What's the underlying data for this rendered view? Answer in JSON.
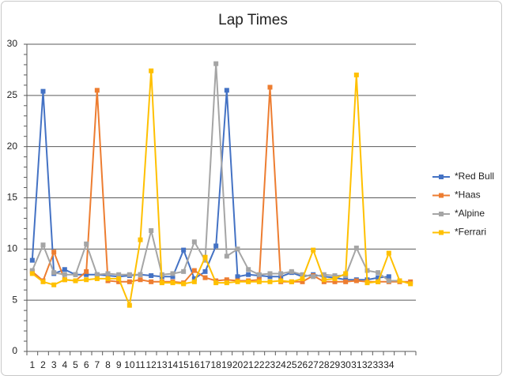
{
  "chart_data": {
    "type": "line",
    "title": "Lap Times",
    "categories": [
      "1",
      "2",
      "3",
      "4",
      "5",
      "6",
      "7",
      "8",
      "9",
      "10",
      "11",
      "12",
      "13",
      "14",
      "15",
      "16",
      "17",
      "18",
      "19",
      "20",
      "21",
      "22",
      "23",
      "24",
      "25",
      "26",
      "27",
      "28",
      "29",
      "30",
      "31",
      "32",
      "33",
      "34",
      null,
      null
    ],
    "series": [
      {
        "name": "*Red Bull",
        "color": "#4472c4",
        "values": [
          8.9,
          25.4,
          7.6,
          8.0,
          7.5,
          7.5,
          7.5,
          7.4,
          7.3,
          7.4,
          7.5,
          7.4,
          7.3,
          7.3,
          9.9,
          7.1,
          7.8,
          10.3,
          25.5,
          7.3,
          7.5,
          7.4,
          7.3,
          7.3,
          7.7,
          7.3,
          7.5,
          7.3,
          7.2,
          7.0,
          7.0,
          7.0,
          7.2,
          7.3,
          null,
          null
        ]
      },
      {
        "name": "*Haas",
        "color": "#ed7d31",
        "values": [
          7.8,
          6.9,
          9.7,
          7.0,
          6.9,
          7.8,
          25.5,
          6.9,
          6.8,
          6.8,
          7.0,
          6.8,
          6.8,
          6.8,
          6.7,
          7.9,
          7.2,
          6.9,
          7.0,
          6.9,
          6.9,
          7.0,
          25.8,
          6.8,
          6.8,
          6.8,
          7.4,
          6.8,
          6.8,
          6.8,
          6.9,
          6.8,
          6.8,
          6.8,
          6.8,
          6.8
        ]
      },
      {
        "name": "*Alpine",
        "color": "#a5a5a5",
        "values": [
          7.9,
          10.4,
          7.7,
          7.5,
          7.5,
          10.5,
          7.5,
          7.6,
          7.5,
          7.5,
          7.5,
          11.8,
          7.5,
          7.6,
          7.8,
          10.7,
          8.9,
          28.1,
          9.3,
          10.0,
          8.0,
          7.5,
          7.6,
          7.6,
          7.8,
          7.5,
          7.3,
          7.5,
          7.4,
          7.4,
          10.1,
          7.9,
          7.7,
          6.9,
          6.9,
          null
        ]
      },
      {
        "name": "*Ferrari",
        "color": "#ffc000",
        "values": [
          7.6,
          6.8,
          6.5,
          7.0,
          6.9,
          7.0,
          7.1,
          7.1,
          7.1,
          4.5,
          10.9,
          27.4,
          6.7,
          6.7,
          6.6,
          6.8,
          9.2,
          6.7,
          6.7,
          6.8,
          6.8,
          6.8,
          6.8,
          6.9,
          6.8,
          7.1,
          9.9,
          7.0,
          7.1,
          7.6,
          27.0,
          6.7,
          6.8,
          9.6,
          6.9,
          6.6
        ]
      }
    ],
    "ylim": [
      0,
      30
    ],
    "yticks": [
      0,
      5,
      10,
      15,
      20,
      25,
      30
    ],
    "grid": true,
    "legend": "right"
  }
}
